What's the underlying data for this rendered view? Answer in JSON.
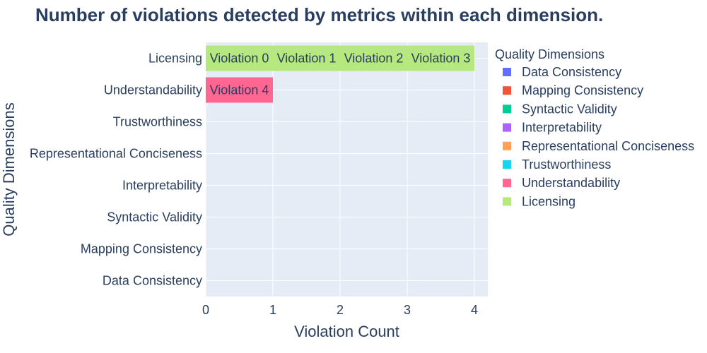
{
  "chart_data": {
    "type": "bar",
    "orientation": "horizontal",
    "barmode": "stack",
    "title": "Number of violations detected by metrics within each dimension.",
    "xlabel": "Violation Count",
    "ylabel": "Quality Dimensions",
    "xlim": [
      0,
      4.2
    ],
    "x_ticks": [
      0,
      1,
      2,
      3,
      4
    ],
    "grid": true,
    "plot_background": "#e5ecf6",
    "categories": [
      "Data Consistency",
      "Mapping Consistency",
      "Syntactic Validity",
      "Interpretability",
      "Representational Conciseness",
      "Trustworthiness",
      "Understandability",
      "Licensing"
    ],
    "segments": [
      {
        "category": "Licensing",
        "label": "Violation 0",
        "value": 1
      },
      {
        "category": "Licensing",
        "label": "Violation 1",
        "value": 1
      },
      {
        "category": "Licensing",
        "label": "Violation 2",
        "value": 1
      },
      {
        "category": "Licensing",
        "label": "Violation 3",
        "value": 1
      },
      {
        "category": "Understandability",
        "label": "Violation 4",
        "value": 1
      }
    ],
    "legend": {
      "title": "Quality Dimensions",
      "placement": "right",
      "items": [
        {
          "name": "Data Consistency",
          "color": "#636efa"
        },
        {
          "name": "Mapping Consistency",
          "color": "#ef553b"
        },
        {
          "name": "Syntactic Validity",
          "color": "#00cc96"
        },
        {
          "name": "Interpretability",
          "color": "#ab63fa"
        },
        {
          "name": "Representational Conciseness",
          "color": "#ffa15a"
        },
        {
          "name": "Trustworthiness",
          "color": "#19d3f3"
        },
        {
          "name": "Understandability",
          "color": "#ff6692"
        },
        {
          "name": "Licensing",
          "color": "#b6e880"
        }
      ]
    }
  }
}
